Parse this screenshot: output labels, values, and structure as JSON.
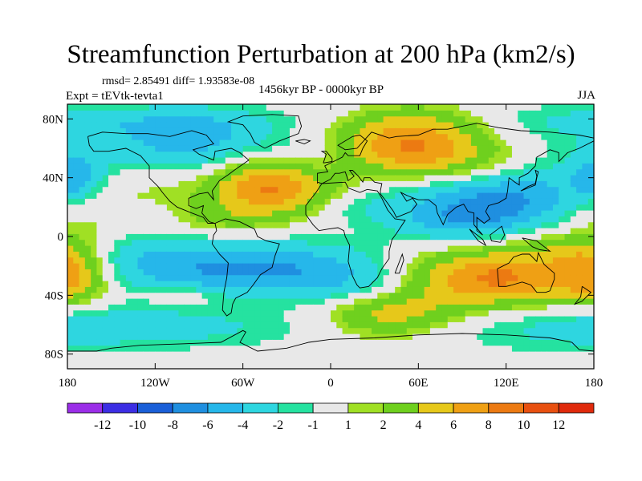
{
  "chart_data": {
    "type": "heatmap",
    "title": "Streamfunction Perturbation at 200 hPa (km2/s)",
    "stats_text": "rmsd= 2.85491 diff= 1.93583e-08",
    "experiment": "Expt = tEVtk-tevta1",
    "period": "1456kyr BP - 0000kyr BP",
    "season": "JJA",
    "xlim": [
      -180,
      180
    ],
    "ylim": [
      -90,
      90
    ],
    "x_ticks": [
      {
        "value": -180,
        "label": "180"
      },
      {
        "value": -120,
        "label": "120W"
      },
      {
        "value": -60,
        "label": "60W"
      },
      {
        "value": 0,
        "label": "0"
      },
      {
        "value": 60,
        "label": "60E"
      },
      {
        "value": 120,
        "label": "120E"
      },
      {
        "value": 180,
        "label": "180"
      }
    ],
    "y_ticks": [
      {
        "value": 80,
        "label": "80N"
      },
      {
        "value": 40,
        "label": "40N"
      },
      {
        "value": 0,
        "label": "0"
      },
      {
        "value": -40,
        "label": "40S"
      },
      {
        "value": -80,
        "label": "80S"
      }
    ],
    "contour_levels": [
      -12,
      -10,
      -8,
      -6,
      -4,
      -2,
      -1,
      1,
      2,
      4,
      6,
      8,
      10,
      12
    ],
    "colorbar_colors": [
      "#9b2ee8",
      "#3c2ee4",
      "#1a5fd8",
      "#1f8fe0",
      "#26b7ea",
      "#2ed6e0",
      "#25e2a0",
      "#e8e8e8",
      "#a0e024",
      "#6fd01e",
      "#e6c81a",
      "#efa014",
      "#ec7a12",
      "#e85010",
      "#e02a0c"
    ],
    "colorbar_labels": [
      "-12",
      "-10",
      "-8",
      "-6",
      "-4",
      "-2",
      "-1",
      "1",
      "2",
      "4",
      "6",
      "8",
      "10",
      "12"
    ],
    "field_features": [
      {
        "lon": -178,
        "lat": 20,
        "value": 4,
        "rlon": 30,
        "rlat": 18
      },
      {
        "lon": -178,
        "lat": -25,
        "value": 6,
        "rlon": 18,
        "rlat": 14
      },
      {
        "lon": -160,
        "lat": 55,
        "value": -2.5,
        "rlon": 40,
        "rlat": 16
      },
      {
        "lon": -175,
        "lat": 40,
        "value": -5,
        "rlon": 14,
        "rlat": 10
      },
      {
        "lon": -170,
        "lat": -60,
        "value": -2,
        "rlon": 45,
        "rlat": 12
      },
      {
        "lon": -112,
        "lat": 78,
        "value": -2,
        "rlon": 60,
        "rlat": 8
      },
      {
        "lon": -90,
        "lat": 62,
        "value": -4.5,
        "rlon": 35,
        "rlat": 16
      },
      {
        "lon": -130,
        "lat": 38,
        "value": 2.5,
        "rlon": 35,
        "rlat": 14
      },
      {
        "lon": -75,
        "lat": 12,
        "value": 2,
        "rlon": 25,
        "rlat": 8
      },
      {
        "lon": -40,
        "lat": 35,
        "value": 9,
        "rlon": 30,
        "rlat": 14
      },
      {
        "lon": -20,
        "lat": 52,
        "value": -2.5,
        "rlon": 22,
        "rlat": 12
      },
      {
        "lon": -55,
        "lat": -22,
        "value": -6.5,
        "rlon": 75,
        "rlat": 13
      },
      {
        "lon": -140,
        "lat": -10,
        "value": -1.5,
        "rlon": 35,
        "rlat": 12
      },
      {
        "lon": -100,
        "lat": -40,
        "value": 2,
        "rlon": 20,
        "rlat": 5
      },
      {
        "lon": 25,
        "lat": -35,
        "value": -2.5,
        "rlon": 35,
        "rlat": 10
      },
      {
        "lon": 40,
        "lat": -52,
        "value": 5,
        "rlon": 30,
        "rlat": 11
      },
      {
        "lon": -85,
        "lat": -62,
        "value": -2,
        "rlon": 55,
        "rlat": 10
      },
      {
        "lon": 55,
        "lat": 62,
        "value": 8,
        "rlon": 35,
        "rlat": 14
      },
      {
        "lon": 40,
        "lat": 80,
        "value": 2,
        "rlon": 50,
        "rlat": 8
      },
      {
        "lon": 5,
        "lat": 82,
        "value": -1.5,
        "rlon": 30,
        "rlat": 7
      },
      {
        "lon": 140,
        "lat": 80,
        "value": -1.5,
        "rlon": 50,
        "rlat": 8
      },
      {
        "lon": 130,
        "lat": 25,
        "value": -7,
        "rlon": 55,
        "rlat": 15
      },
      {
        "lon": 85,
        "lat": 10,
        "value": -3,
        "rlon": 30,
        "rlat": 10
      },
      {
        "lon": 15,
        "lat": 20,
        "value": -1.5,
        "rlon": 22,
        "rlat": 8
      },
      {
        "lon": 110,
        "lat": -28,
        "value": 9,
        "rlon": 50,
        "rlat": 14
      },
      {
        "lon": 160,
        "lat": -8,
        "value": 2,
        "rlon": 25,
        "rlat": 8
      },
      {
        "lon": 130,
        "lat": -62,
        "value": -1.5,
        "rlon": 55,
        "rlat": 12
      },
      {
        "lon": 95,
        "lat": 48,
        "value": 2,
        "rlon": 30,
        "rlat": 10
      }
    ]
  }
}
